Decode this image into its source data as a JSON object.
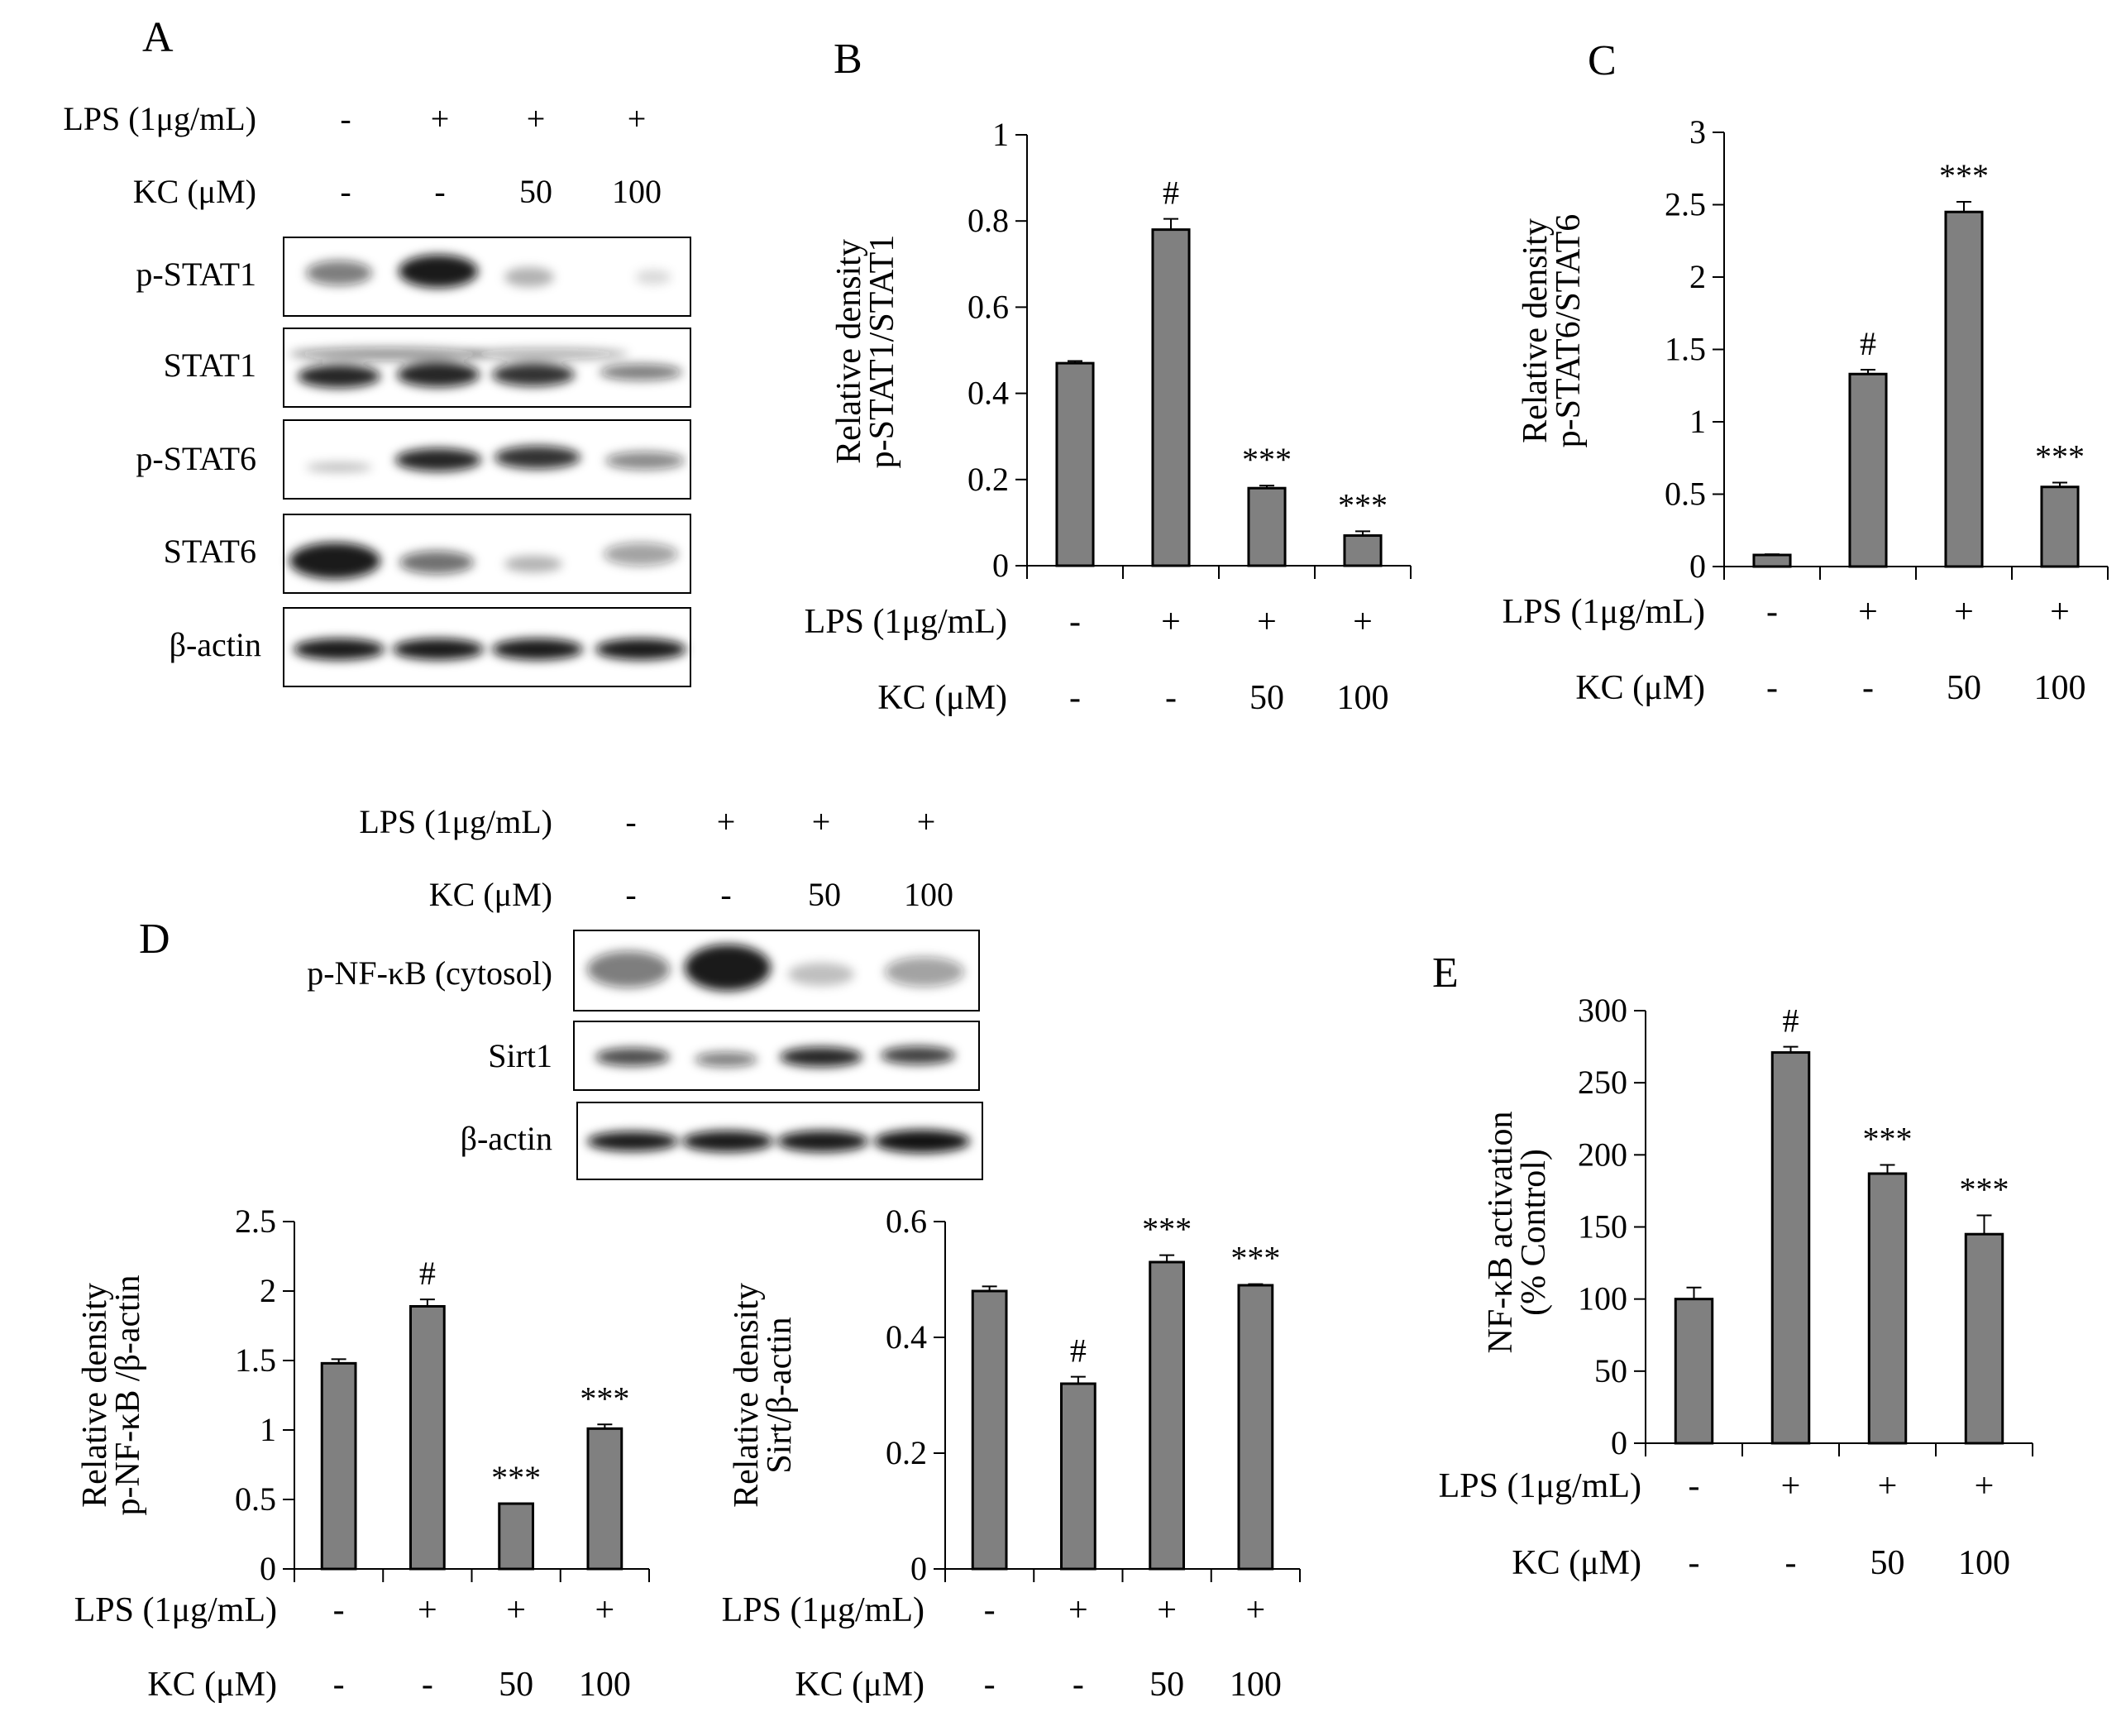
{
  "conditions": {
    "lps_label": "LPS (1μg/mL)",
    "kc_label": "KC (μM)",
    "lps": [
      "-",
      "+",
      "+",
      "+"
    ],
    "kc": [
      "-",
      "-",
      "50",
      "100"
    ]
  },
  "blot_A": {
    "panel_label": "A",
    "bands": [
      "p-STAT1",
      "STAT1",
      "p-STAT6",
      "STAT6",
      "β-actin"
    ]
  },
  "blot_D": {
    "panel_label": "D",
    "bands": [
      "p-NF-κB (cytosol)",
      "Sirt1",
      "β-actin"
    ]
  },
  "colors": {
    "bar": "#808080",
    "bar_edge": "#000000",
    "blot_band": "#111111"
  },
  "chart_data": [
    {
      "id": "B",
      "panel_label": "B",
      "type": "bar",
      "ylabel": [
        "Relative density",
        "p-STAT1/STAT1"
      ],
      "ylim": [
        0,
        1
      ],
      "yticks": [
        "0",
        "0.2",
        "0.4",
        "0.6",
        "0.8",
        "1"
      ],
      "categories": [
        "1",
        "2",
        "3",
        "4"
      ],
      "values": [
        0.47,
        0.78,
        0.18,
        0.07
      ],
      "errors": [
        0.005,
        0.025,
        0.006,
        0.01
      ],
      "annotations": [
        "",
        "#",
        "***",
        "***"
      ]
    },
    {
      "id": "C",
      "panel_label": "C",
      "type": "bar",
      "ylabel": [
        "Relative density",
        "p-STAT6/STAT6"
      ],
      "ylim": [
        0,
        3
      ],
      "yticks": [
        "0",
        "0.5",
        "1",
        "1.5",
        "2",
        "2.5",
        "3"
      ],
      "categories": [
        "1",
        "2",
        "3",
        "4"
      ],
      "values": [
        0.08,
        1.33,
        2.45,
        0.55
      ],
      "errors": [
        0.005,
        0.03,
        0.07,
        0.03
      ],
      "annotations": [
        "",
        "#",
        "***",
        "***"
      ]
    },
    {
      "id": "D1",
      "panel_label": "",
      "type": "bar",
      "ylabel": [
        "Relative density",
        "p-NF-κB /β-actin"
      ],
      "ylim": [
        0,
        2.5
      ],
      "yticks": [
        "0",
        "0.5",
        "1",
        "1.5",
        "2",
        "2.5"
      ],
      "categories": [
        "1",
        "2",
        "3",
        "4"
      ],
      "values": [
        1.48,
        1.89,
        0.47,
        1.01
      ],
      "errors": [
        0.03,
        0.05,
        0.0,
        0.03
      ],
      "annotations": [
        "",
        "#",
        "***",
        "***"
      ]
    },
    {
      "id": "D2",
      "panel_label": "",
      "type": "bar",
      "ylabel": [
        "Relative density",
        "Sirt/β-actin"
      ],
      "ylim": [
        0,
        0.6
      ],
      "yticks": [
        "0",
        "0.2",
        "0.4",
        "0.6"
      ],
      "categories": [
        "1",
        "2",
        "3",
        "4"
      ],
      "values": [
        0.48,
        0.32,
        0.53,
        0.49
      ],
      "errors": [
        0.008,
        0.012,
        0.012,
        0.002
      ],
      "annotations": [
        "",
        "#",
        "***",
        "***"
      ]
    },
    {
      "id": "E",
      "panel_label": "E",
      "type": "bar",
      "ylabel": [
        "NF-κB activation",
        "(% Control)"
      ],
      "ylim": [
        0,
        300
      ],
      "yticks": [
        "0",
        "50",
        "100",
        "150",
        "200",
        "250",
        "300"
      ],
      "categories": [
        "1",
        "2",
        "3",
        "4"
      ],
      "values": [
        100,
        271,
        187,
        145
      ],
      "errors": [
        8,
        4,
        6,
        13
      ],
      "annotations": [
        "",
        "#",
        "***",
        "***"
      ]
    }
  ]
}
